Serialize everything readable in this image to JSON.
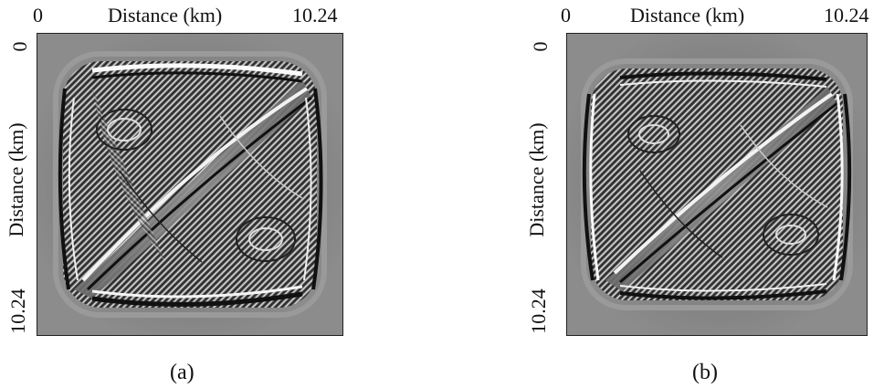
{
  "figures": [
    {
      "id": "a",
      "x_tick_start": "0",
      "x_tick_end": "10.24",
      "x_label": "Distance (km)",
      "y_tick_start": "0",
      "y_tick_end": "10.24",
      "y_label": "Distance (km)",
      "caption": "(a)"
    },
    {
      "id": "b",
      "x_tick_start": "0",
      "x_tick_end": "10.24",
      "x_label": "Distance (km)",
      "y_tick_start": "0",
      "y_tick_end": "10.24",
      "y_label": "Distance (km)",
      "caption": "(b)"
    }
  ]
}
